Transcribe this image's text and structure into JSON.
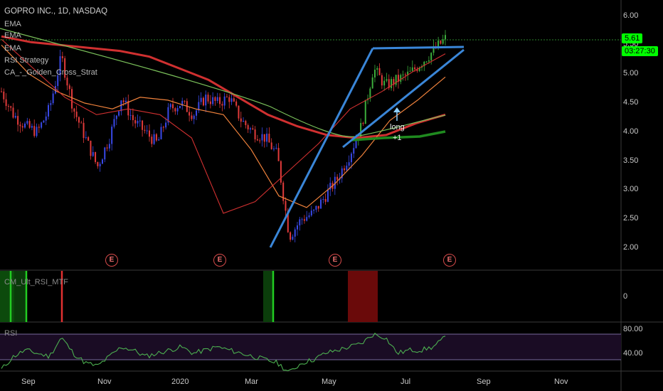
{
  "header": {
    "title": "GOPRO INC., 1D, NASDAQ",
    "indicators": [
      "EMA",
      "EMA",
      "EMA",
      "RSI Strategy",
      "CA_-_Golden_Cross_Strat"
    ]
  },
  "price_tag": {
    "value": "5.61",
    "countdown": "03:27:30",
    "bg": "#00ff00",
    "fg": "#000000"
  },
  "annotation": {
    "line1": "long",
    "line2": "+1"
  },
  "earnings_label": "E",
  "panes": {
    "mid": {
      "name": "CM_Ult_RSI_MTF",
      "tick": "0"
    },
    "rsi": {
      "name": "RSI",
      "ticks": [
        "80.00",
        "40.00"
      ]
    }
  },
  "colors": {
    "up": "#3949e8",
    "down": "#e23b3b",
    "mid": "#3cae3c",
    "trendline": "#3a86d8",
    "ema_fast": "#f0823c",
    "ema_slow": "#d03030",
    "ema_long": "#7ac05a",
    "rsi_line": "#4caf50"
  },
  "chart_data": {
    "type": "line",
    "title": "GOPRO INC., 1D, NASDAQ",
    "y_ticks": [
      "6.00",
      "5.50",
      "5.00",
      "4.50",
      "4.00",
      "3.50",
      "3.00",
      "2.50",
      "2.00"
    ],
    "ylim": [
      1.9,
      6.2
    ],
    "x_ticks": [
      "Sep",
      "Nov",
      "2020",
      "Mar",
      "May",
      "Jul",
      "Sep",
      "Nov"
    ],
    "last_price": 5.61,
    "trendline_hints": [
      "wedge upper",
      "wedge lower",
      "rally"
    ],
    "price_series": [
      {
        "name": "close_approx",
        "values": [
          4.7,
          4.3,
          4.1,
          4.0,
          4.4,
          5.3,
          4.4,
          3.9,
          3.4,
          3.9,
          4.6,
          4.2,
          4.0,
          3.8,
          4.4,
          4.5,
          4.3,
          4.6,
          4.5,
          4.6,
          4.2,
          4.0,
          3.9,
          3.6,
          2.2,
          2.5,
          2.6,
          2.9,
          3.2,
          3.6,
          4.1,
          5.1,
          4.8,
          4.9,
          5.0,
          5.2,
          5.4,
          5.61
        ]
      }
    ],
    "emas": [
      {
        "values": [
          5.65,
          5.55,
          5.5,
          5.45,
          5.4,
          5.3,
          5.1,
          4.9,
          4.6,
          4.3,
          4.1,
          3.95,
          3.9,
          3.95,
          4.15,
          4.3
        ]
      },
      {
        "values": [
          5.5,
          5.0,
          4.7,
          4.5,
          4.4,
          4.6,
          4.55,
          4.4,
          4.3,
          3.7,
          2.9,
          2.7,
          3.1,
          3.6,
          4.2,
          4.55,
          4.95
        ]
      },
      {
        "values": [
          5.6,
          5.1,
          4.6,
          4.3,
          4.4,
          4.3,
          3.9,
          2.6,
          2.8,
          3.3,
          3.8,
          4.4,
          4.7,
          5.05,
          5.35
        ]
      }
    ],
    "earnings_count": 4,
    "rsi_pane": {
      "upper": 80,
      "lower": 40
    }
  }
}
